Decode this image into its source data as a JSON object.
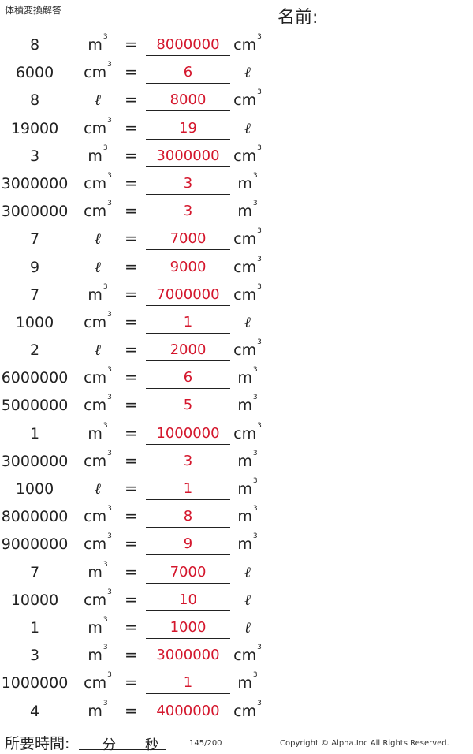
{
  "header": {
    "title": "体積変換解答",
    "name_label": "名前:"
  },
  "equals_symbol": "=",
  "units": {
    "m3": "m",
    "cm3": "cm",
    "l": "ℓ",
    "cube": "3"
  },
  "problems": [
    {
      "quantity": "8",
      "from_unit": "m3",
      "answer": "8000000",
      "to_unit": "cm3"
    },
    {
      "quantity": "6000",
      "from_unit": "cm3",
      "answer": "6",
      "to_unit": "l"
    },
    {
      "quantity": "8",
      "from_unit": "l",
      "answer": "8000",
      "to_unit": "cm3"
    },
    {
      "quantity": "19000",
      "from_unit": "cm3",
      "answer": "19",
      "to_unit": "l"
    },
    {
      "quantity": "3",
      "from_unit": "m3",
      "answer": "3000000",
      "to_unit": "cm3"
    },
    {
      "quantity": "3000000",
      "from_unit": "cm3",
      "answer": "3",
      "to_unit": "m3"
    },
    {
      "quantity": "3000000",
      "from_unit": "cm3",
      "answer": "3",
      "to_unit": "m3"
    },
    {
      "quantity": "7",
      "from_unit": "l",
      "answer": "7000",
      "to_unit": "cm3"
    },
    {
      "quantity": "9",
      "from_unit": "l",
      "answer": "9000",
      "to_unit": "cm3"
    },
    {
      "quantity": "7",
      "from_unit": "m3",
      "answer": "7000000",
      "to_unit": "cm3"
    },
    {
      "quantity": "1000",
      "from_unit": "cm3",
      "answer": "1",
      "to_unit": "l"
    },
    {
      "quantity": "2",
      "from_unit": "l",
      "answer": "2000",
      "to_unit": "cm3"
    },
    {
      "quantity": "6000000",
      "from_unit": "cm3",
      "answer": "6",
      "to_unit": "m3"
    },
    {
      "quantity": "5000000",
      "from_unit": "cm3",
      "answer": "5",
      "to_unit": "m3"
    },
    {
      "quantity": "1",
      "from_unit": "m3",
      "answer": "1000000",
      "to_unit": "cm3"
    },
    {
      "quantity": "3000000",
      "from_unit": "cm3",
      "answer": "3",
      "to_unit": "m3"
    },
    {
      "quantity": "1000",
      "from_unit": "l",
      "answer": "1",
      "to_unit": "m3"
    },
    {
      "quantity": "8000000",
      "from_unit": "cm3",
      "answer": "8",
      "to_unit": "m3"
    },
    {
      "quantity": "9000000",
      "from_unit": "cm3",
      "answer": "9",
      "to_unit": "m3"
    },
    {
      "quantity": "7",
      "from_unit": "m3",
      "answer": "7000",
      "to_unit": "l"
    },
    {
      "quantity": "10000",
      "from_unit": "cm3",
      "answer": "10",
      "to_unit": "l"
    },
    {
      "quantity": "1",
      "from_unit": "m3",
      "answer": "1000",
      "to_unit": "l"
    },
    {
      "quantity": "3",
      "from_unit": "m3",
      "answer": "3000000",
      "to_unit": "cm3"
    },
    {
      "quantity": "1000000",
      "from_unit": "cm3",
      "answer": "1",
      "to_unit": "m3"
    },
    {
      "quantity": "4",
      "from_unit": "m3",
      "answer": "4000000",
      "to_unit": "cm3"
    }
  ],
  "footer": {
    "time_label": "所要時間:",
    "minutes_label": "分",
    "seconds_label": "秒",
    "page": "145/200",
    "copyright": "Copyright © Alpha.Inc All Rights Reserved."
  },
  "colors": {
    "answer": "#d4162c",
    "text": "#222222"
  }
}
